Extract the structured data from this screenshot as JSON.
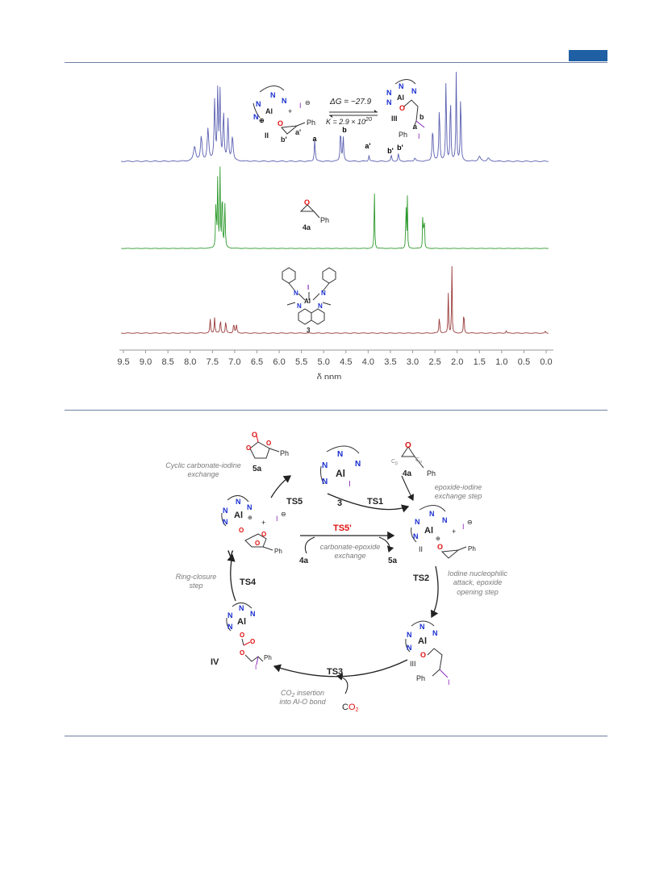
{
  "figure1": {
    "axis": {
      "ticks": [
        "9.5",
        "9.0",
        "8.5",
        "8.0",
        "7.5",
        "7.0",
        "6.5",
        "6.0",
        "5.5",
        "5.0",
        "4.5",
        "4.0",
        "3.5",
        "3.0",
        "2.5",
        "2.0",
        "1.5",
        "1.0",
        "0.5",
        "0.0"
      ],
      "label": "δ ppm"
    },
    "top_spectrum": {
      "color": "#5a5fb0",
      "compound_II_label": "II",
      "compound_III_label": "III",
      "delta_g": "ΔG = −27.9",
      "k_value": "K = 2.9 × 10",
      "k_exp": "20",
      "charge_minus": "⊖",
      "iodide": "I",
      "plus": "+",
      "ph": "Ph",
      "peaks": {
        "a": "a",
        "b": "b",
        "a_prime": "a'",
        "b_prime1": "b'",
        "b_prime2": "b'"
      },
      "struct_letters": {
        "a": "a",
        "b": "b",
        "a_prime": "a'",
        "b_prime": "b'"
      }
    },
    "middle_spectrum": {
      "color": "#2e9a2e",
      "compound_label": "4a",
      "ph": "Ph"
    },
    "bottom_spectrum": {
      "color": "#9a3a3a",
      "compound_label": "3"
    }
  },
  "figure2": {
    "species": {
      "three": "3",
      "five_a_top": "5a",
      "four_a_top": "4a",
      "II": "II",
      "III": "III",
      "IV": "IV",
      "V": "V",
      "four_a_mid": "4a",
      "five_a_mid": "5a",
      "co2_c": "C",
      "co2_o": "O",
      "co2_sub": "2"
    },
    "ts": {
      "TS1": "TS1",
      "TS2": "TS2",
      "TS3": "TS3",
      "TS4": "TS4",
      "TS5": "TS5",
      "TS5p": "TS5'"
    },
    "steps": {
      "cyclic_carbonate_1": "Cyclic carbonate-iodine",
      "cyclic_carbonate_2": "exchange",
      "epoxide_iodine_1": "epoxide-iodine",
      "epoxide_iodine_2": "exchange step",
      "carbonate_epoxide_1": "carbonate-epoxide",
      "carbonate_epoxide_2": "exchange",
      "iodine_attack_1": "Iodine nucleophilic",
      "iodine_attack_2": "attack, epoxide",
      "iodine_attack_3": "opening step",
      "ring_closure_1": "Ring-closure",
      "ring_closure_2": "step",
      "co2_insertion_1": "CO",
      "co2_insertion_sub": "2",
      "co2_insertion_1b": " insertion",
      "co2_insertion_2": "into Al-O bond"
    },
    "atoms": {
      "N": "N",
      "Al": "Al",
      "I": "I",
      "O": "O",
      "Ph": "Ph",
      "plus": "+",
      "minus": "⊖",
      "plus_circ": "⊕",
      "c_beta": "C",
      "beta": "β",
      "c_alpha": "C",
      "alpha": "α"
    },
    "colors": {
      "N": "#1a2fd0",
      "O": "#e01010",
      "I": "#8a2ab8",
      "TS5p": "#e01010",
      "step": "#7a7a7a"
    }
  }
}
